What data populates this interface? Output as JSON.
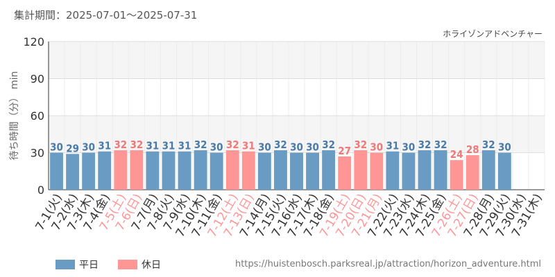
{
  "header": {
    "period_label": "集計期間：2025-07-01～2025-07-31",
    "attraction_name": "ホライゾンアドベンチャー"
  },
  "legend": {
    "weekday_label": "平日",
    "holiday_label": "休日"
  },
  "footer": {
    "source_url": "https://huistenbosch.parksreal.jp/attraction/horizon_adventure.html"
  },
  "colors": {
    "weekday": "#6a9bc3",
    "holiday": "#ff9696",
    "weekday_text": "#4a7aa8",
    "holiday_text": "#f07878",
    "band": "#f5f5f5",
    "grid": "#dddddd"
  },
  "chart_data": {
    "type": "bar",
    "ylabel": "待ち時間（分） min",
    "ylim": [
      0,
      120
    ],
    "yticks": [
      0,
      30,
      60,
      90,
      120
    ],
    "grid": true,
    "legend_position": "bottom-left",
    "categories": [
      "7-1(火)",
      "7-2(水)",
      "7-3(木)",
      "7-4(金)",
      "7-5(土)",
      "7-6(日)",
      "7-7(月)",
      "7-8(火)",
      "7-9(水)",
      "7-10(木)",
      "7-11(金)",
      "7-12(土)",
      "7-13(日)",
      "7-14(月)",
      "7-15(火)",
      "7-16(水)",
      "7-17(木)",
      "7-18(金)",
      "7-19(土)",
      "7-20(日)",
      "7-21(月)",
      "7-22(火)",
      "7-23(水)",
      "7-24(木)",
      "7-25(金)",
      "7-26(土)",
      "7-27(日)",
      "7-28(月)",
      "7-29(火)",
      "7-30(水)",
      "7-31(木)"
    ],
    "values": [
      30,
      29,
      30,
      31,
      32,
      32,
      31,
      31,
      31,
      32,
      30,
      32,
      31,
      30,
      32,
      30,
      30,
      32,
      27,
      32,
      30,
      31,
      30,
      32,
      32,
      24,
      28,
      32,
      30,
      null,
      null
    ],
    "day_type": [
      "weekday",
      "weekday",
      "weekday",
      "weekday",
      "holiday",
      "holiday",
      "weekday",
      "weekday",
      "weekday",
      "weekday",
      "weekday",
      "holiday",
      "holiday",
      "weekday",
      "weekday",
      "weekday",
      "weekday",
      "weekday",
      "holiday",
      "holiday",
      "holiday",
      "weekday",
      "weekday",
      "weekday",
      "weekday",
      "holiday",
      "holiday",
      "weekday",
      "weekday",
      "weekday",
      "weekday"
    ]
  }
}
